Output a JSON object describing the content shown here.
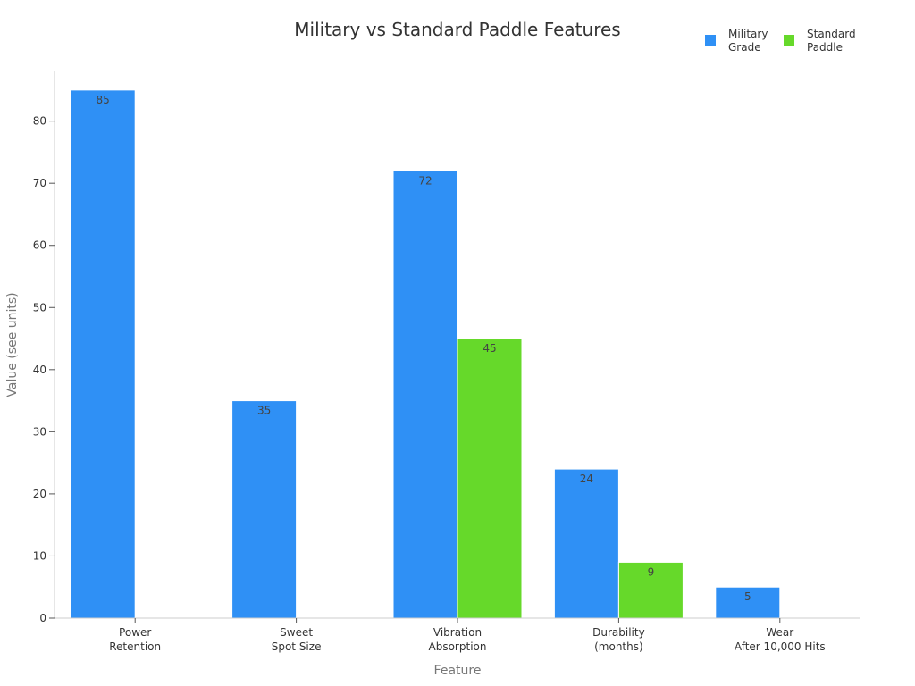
{
  "chart_data": {
    "type": "bar",
    "title": "Military vs Standard Paddle Features",
    "xlabel": "Feature",
    "ylabel": "Value (see units)",
    "categories": [
      [
        "Power",
        "Retention"
      ],
      [
        "Sweet",
        "Spot Size"
      ],
      [
        "Vibration",
        "Absorption"
      ],
      [
        "Durability",
        "(months)"
      ],
      [
        "Wear",
        "After 10,000 Hits"
      ]
    ],
    "series": [
      {
        "name": [
          "Military",
          "Grade"
        ],
        "color": "#2f90f5",
        "values": [
          85,
          35,
          72,
          24,
          5
        ]
      },
      {
        "name": [
          "Standard",
          "Paddle"
        ],
        "color": "#66d92a",
        "values": [
          null,
          null,
          45,
          9,
          null
        ]
      }
    ],
    "ylim": [
      0,
      88
    ],
    "yticks": [
      0,
      10,
      20,
      30,
      40,
      50,
      60,
      70,
      80
    ],
    "grid": false,
    "legend": "top-right",
    "data_labels": true
  }
}
